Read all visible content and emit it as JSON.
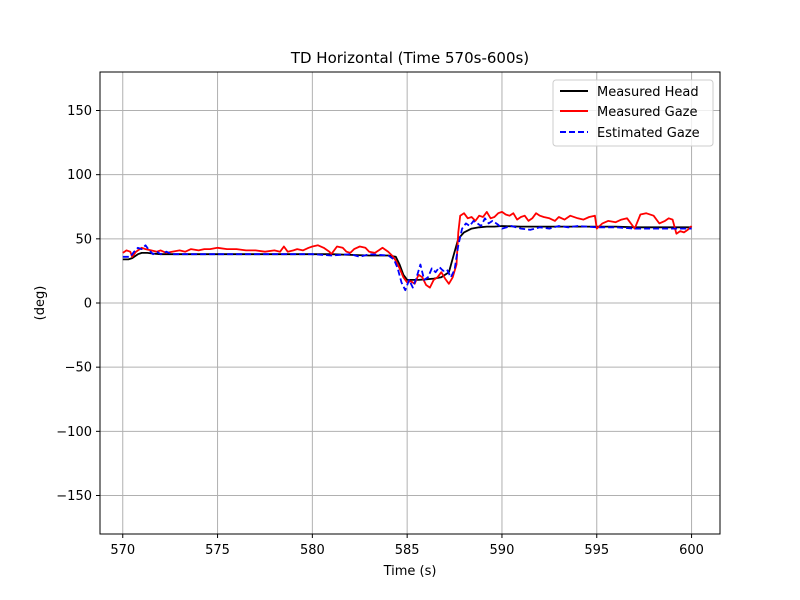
{
  "chart_data": {
    "type": "line",
    "title": "TD Horizontal (Time 570s-600s)",
    "xlabel": "Time (s)",
    "ylabel": "(deg)",
    "xlim": [
      568.8,
      601.5
    ],
    "ylim": [
      -180,
      180
    ],
    "xticks": [
      570,
      575,
      580,
      585,
      590,
      595,
      600
    ],
    "yticks": [
      -150,
      -100,
      -50,
      0,
      50,
      100,
      150
    ],
    "xtick_labels": [
      "570",
      "575",
      "580",
      "585",
      "590",
      "595",
      "600"
    ],
    "ytick_labels": [
      "−150",
      "−100",
      "−50",
      "0",
      "50",
      "100",
      "150"
    ],
    "grid": true,
    "legend_position": "top-right",
    "series": [
      {
        "name": "Measured Head",
        "color": "#000000",
        "style": "solid",
        "x": [
          570,
          570.3,
          570.5,
          570.8,
          571,
          571.3,
          571.6,
          572,
          573,
          574,
          575,
          576,
          577,
          578,
          579,
          580,
          581,
          582,
          583,
          584,
          584.4,
          584.6,
          584.8,
          585,
          585.3,
          585.6,
          586,
          586.4,
          586.8,
          587.2,
          587.5,
          587.7,
          588,
          588.4,
          588.8,
          589.2,
          589.6,
          590,
          591,
          592,
          593,
          594,
          595,
          596,
          597,
          598,
          599,
          600
        ],
        "values": [
          34,
          34,
          35,
          38,
          39,
          39,
          38.5,
          38,
          38,
          38,
          38,
          38,
          38,
          38,
          38,
          38,
          38,
          37.5,
          37,
          37,
          36,
          30,
          22,
          18,
          18,
          18,
          18.5,
          19,
          20,
          24,
          40,
          50,
          55,
          58,
          59,
          59.5,
          59.5,
          60,
          59.5,
          59.5,
          59.5,
          59.5,
          59.5,
          59.5,
          59,
          59,
          59,
          59
        ]
      },
      {
        "name": "Measured Gaze",
        "color": "#ff0000",
        "style": "solid",
        "x": [
          570,
          570.2,
          570.4,
          570.5,
          570.7,
          570.9,
          571,
          571.2,
          571.5,
          571.8,
          572,
          572.3,
          572.6,
          573,
          573.3,
          573.6,
          574,
          574.3,
          574.6,
          575,
          575.5,
          576,
          576.5,
          577,
          577.5,
          578,
          578.3,
          578.5,
          578.7,
          579,
          579.2,
          579.5,
          579.8,
          580,
          580.3,
          580.6,
          580.9,
          581,
          581.3,
          581.6,
          581.8,
          582,
          582.2,
          582.5,
          582.8,
          583,
          583.3,
          583.5,
          583.7,
          584,
          584.2,
          584.4,
          584.6,
          584.8,
          585,
          585.2,
          585.4,
          585.6,
          585.8,
          586,
          586.2,
          586.4,
          586.6,
          586.8,
          587,
          587.2,
          587.4,
          587.6,
          587.7,
          587.8,
          588,
          588.2,
          588.4,
          588.6,
          588.8,
          589,
          589.2,
          589.4,
          589.6,
          589.8,
          590,
          590.2,
          590.4,
          590.6,
          590.8,
          591,
          591.2,
          591.4,
          591.6,
          591.8,
          592,
          592.2,
          592.5,
          592.8,
          593,
          593.3,
          593.6,
          594,
          594.3,
          594.6,
          594.9,
          595,
          595.3,
          595.6,
          596,
          596.3,
          596.6,
          597,
          597.3,
          597.6,
          598,
          598.3,
          598.6,
          598.8,
          599,
          599.2,
          599.4,
          599.6,
          599.8,
          600
        ],
        "values": [
          39,
          41,
          40,
          36,
          40,
          42,
          43,
          42,
          41,
          40,
          41,
          39,
          40,
          41,
          40,
          42,
          41,
          42,
          42,
          43,
          42,
          42,
          41,
          41,
          40,
          41,
          40,
          44,
          40,
          41,
          42,
          41,
          43,
          44,
          45,
          43,
          40,
          38,
          44,
          43,
          40,
          39,
          42,
          44,
          43,
          40,
          39,
          41,
          43,
          40,
          37,
          33,
          27,
          20,
          16,
          17,
          15,
          22,
          20,
          14,
          12,
          18,
          20,
          24,
          19,
          15,
          20,
          30,
          55,
          68,
          70,
          66,
          67,
          64,
          68,
          67,
          71,
          66,
          67,
          70,
          71,
          69,
          68,
          70,
          65,
          67,
          68,
          64,
          66,
          70,
          68,
          67,
          66,
          64,
          67,
          65,
          68,
          66,
          65,
          67,
          68,
          58,
          62,
          64,
          63,
          65,
          66,
          58,
          69,
          70,
          68,
          62,
          64,
          66,
          65,
          54,
          56,
          55,
          57,
          60
        ]
      },
      {
        "name": "Estimated Gaze",
        "color": "#0000ff",
        "style": "dashed",
        "x": [
          570,
          570.4,
          570.6,
          570.8,
          571,
          571.2,
          571.4,
          571.6,
          571.8,
          572,
          572.3,
          572.6,
          573,
          574,
          575,
          576,
          577,
          578,
          579,
          580,
          581,
          582,
          582.5,
          583,
          584,
          584.3,
          584.5,
          584.7,
          584.9,
          585.1,
          585.3,
          585.5,
          585.7,
          585.9,
          586.1,
          586.3,
          586.5,
          586.7,
          586.9,
          587.1,
          587.3,
          587.5,
          587.7,
          587.9,
          588.1,
          588.3,
          588.5,
          588.7,
          588.9,
          589.1,
          589.3,
          589.5,
          589.8,
          590,
          590.5,
          591,
          591.5,
          592,
          592.5,
          593,
          593.5,
          594,
          595,
          596,
          597,
          598,
          599,
          600
        ],
        "values": [
          36,
          36,
          40,
          43,
          42,
          45,
          41,
          38,
          40,
          38,
          40,
          38,
          38,
          38,
          38,
          38,
          38,
          38,
          38,
          38,
          37,
          38,
          36,
          38,
          37,
          34,
          27,
          16,
          10,
          18,
          12,
          20,
          30,
          18,
          20,
          27,
          24,
          28,
          25,
          26,
          20,
          26,
          45,
          58,
          62,
          60,
          64,
          62,
          60,
          66,
          62,
          64,
          61,
          58,
          60,
          58,
          57,
          59,
          58,
          60,
          59,
          60,
          59,
          59,
          58,
          58,
          58,
          58
        ]
      }
    ]
  }
}
